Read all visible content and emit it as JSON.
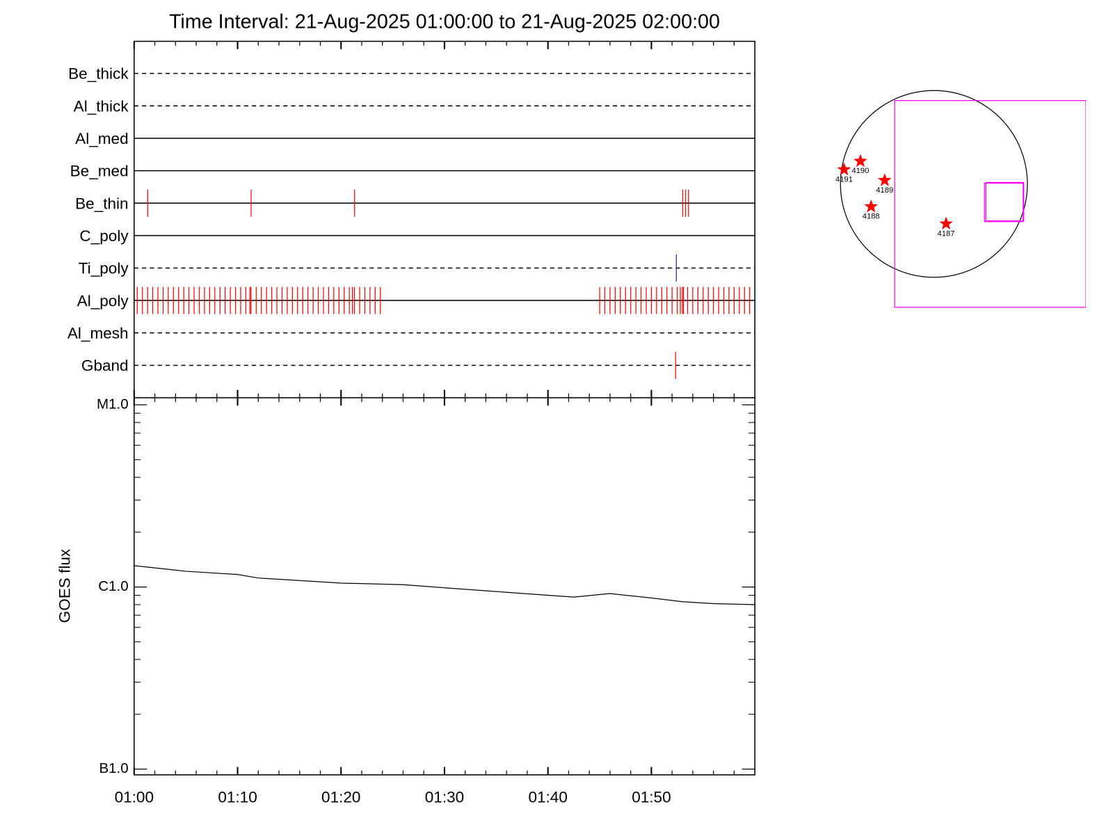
{
  "chart_data": [
    {
      "type": "timeline",
      "title": "Time Interval: 21-Aug-2025 01:00:00 to 21-Aug-2025 02:00:00",
      "xlim": [
        0,
        60
      ],
      "rows": [
        {
          "name": "Be_thick",
          "line": "dashed",
          "color": "#ff0000",
          "events": []
        },
        {
          "name": "Al_thick",
          "line": "dashed",
          "color": "#ff0000",
          "events": []
        },
        {
          "name": "Al_med",
          "line": "solid",
          "color": "#ff0000",
          "events": []
        },
        {
          "name": "Be_med",
          "line": "solid",
          "color": "#ff0000",
          "events": []
        },
        {
          "name": "Be_thin",
          "line": "solid",
          "color": "#ff0000",
          "events": [
            1.31,
            11.31,
            21.31,
            53.03,
            53.31,
            53.59
          ]
        },
        {
          "name": "C_poly",
          "line": "solid",
          "color": "#ff0000",
          "events": []
        },
        {
          "name": "Ti_poly",
          "line": "dashed",
          "color": "#2020c0",
          "events": [
            52.41
          ]
        },
        {
          "name": "Al_poly",
          "line": "solid",
          "color": "#ff0000",
          "events": [
            0.3,
            0.8,
            1.3,
            1.8,
            2.3,
            2.8,
            3.3,
            3.8,
            4.3,
            4.8,
            5.3,
            5.8,
            6.3,
            6.8,
            7.3,
            7.8,
            8.3,
            8.8,
            9.3,
            9.8,
            10.3,
            10.8,
            11.2,
            11.3,
            11.8,
            12.3,
            12.8,
            13.3,
            13.8,
            14.3,
            14.8,
            15.3,
            15.8,
            16.3,
            16.8,
            17.3,
            17.8,
            18.3,
            18.8,
            19.3,
            19.8,
            20.3,
            20.8,
            21.1,
            21.3,
            21.8,
            22.3,
            22.8,
            23.3,
            23.8,
            45.0,
            45.5,
            46.0,
            46.5,
            47.0,
            47.5,
            48.0,
            48.5,
            49.0,
            49.5,
            50.0,
            50.5,
            51.0,
            51.5,
            52.0,
            52.5,
            52.8,
            53.0,
            53.1,
            53.5,
            54.0,
            54.5,
            55.0,
            55.5,
            56.0,
            56.5,
            57.0,
            57.5,
            58.0,
            58.5,
            59.0,
            59.5
          ]
        },
        {
          "name": "Al_mesh",
          "line": "dashed",
          "color": "#ff0000",
          "events": []
        },
        {
          "name": "Gband",
          "line": "dashed",
          "color": "#ff0000",
          "events": [
            52.34
          ]
        }
      ]
    },
    {
      "type": "line",
      "y_label": "GOES flux",
      "x": [
        0,
        5,
        10,
        12,
        20,
        26,
        30,
        40,
        42.5,
        46,
        50,
        53,
        56,
        60
      ],
      "values": [
        1.31e-06,
        1.22e-06,
        1.17e-06,
        1.12e-06,
        1.05e-06,
        1.03e-06,
        9.9e-07,
        9e-07,
        8.8e-07,
        9.2e-07,
        8.7e-07,
        8.3e-07,
        8.1e-07,
        8e-07
      ],
      "color": "#000000",
      "log_scale": true,
      "ylim": [
        9.3e-08,
        1.094e-05
      ],
      "yticks": [
        {
          "value": 1e-05,
          "label": "M1.0"
        },
        {
          "value": 1e-06,
          "label": "C1.0"
        },
        {
          "value": 1e-07,
          "label": "B1.0"
        }
      ],
      "yticks_minor": [
        2e-07,
        3e-07,
        4e-07,
        5e-07,
        6e-07,
        7e-07,
        8e-07,
        9e-07,
        2e-06,
        3e-06,
        4e-06,
        5e-06,
        6e-06,
        7e-06,
        8e-06,
        9e-06
      ],
      "xlim": [
        0,
        60
      ],
      "xticks": [
        {
          "value": 0,
          "label": "01:00"
        },
        {
          "value": 10,
          "label": "01:10"
        },
        {
          "value": 20,
          "label": "01:20"
        },
        {
          "value": 30,
          "label": "01:30"
        },
        {
          "value": 40,
          "label": "01:40"
        },
        {
          "value": 50,
          "label": "01:50"
        }
      ],
      "xticks_minor": [
        2,
        4,
        6,
        8,
        12,
        14,
        16,
        18,
        22,
        24,
        26,
        28,
        32,
        34,
        36,
        38,
        42,
        44,
        46,
        48,
        52,
        54,
        56,
        58
      ]
    },
    {
      "type": "map",
      "r_sun": 960,
      "limb_color": "#000000",
      "point_color": "#ff0000",
      "points": [
        {
          "label": "4191",
          "x": -923,
          "y": 147
        },
        {
          "label": "4190",
          "x": -755,
          "y": 234
        },
        {
          "label": "4189",
          "x": -506,
          "y": 37
        },
        {
          "label": "4188",
          "x": -645,
          "y": -234
        },
        {
          "label": "4187",
          "x": 125,
          "y": -410
        }
      ],
      "fov_color": "#ff00ff",
      "fov": [
        {
          "xlim": [
            -403,
            1561
          ],
          "ylim": [
            -1268,
            857
          ]
        },
        {
          "xlim": [
            520,
            916
          ],
          "ylim": [
            -388,
            7
          ]
        },
        {
          "xlim": [
            535,
            923
          ],
          "ylim": [
            -380,
            15
          ]
        }
      ]
    }
  ]
}
